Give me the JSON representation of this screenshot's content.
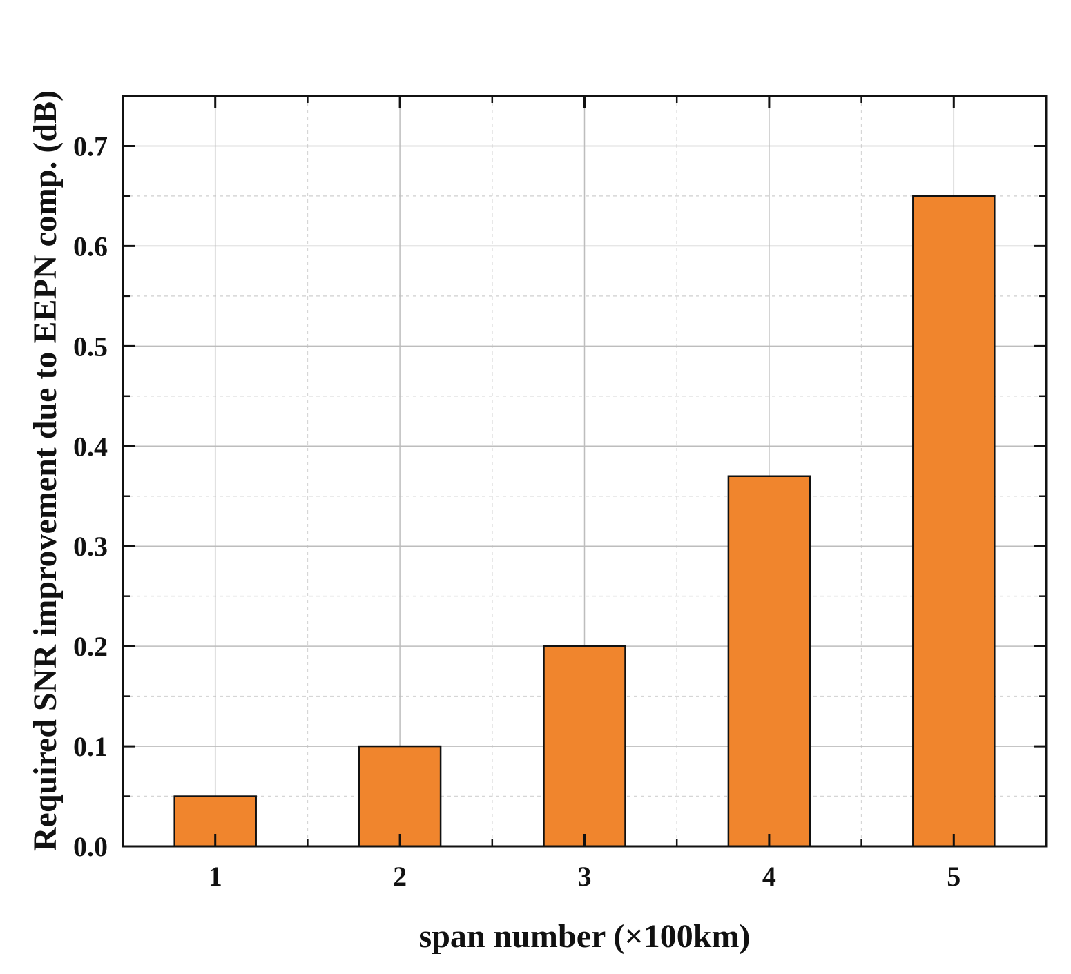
{
  "chart_data": {
    "type": "bar",
    "title": "",
    "xlabel": "span number (×100km)",
    "ylabel": "Required SNR improvement due to EEPN comp. (dB)",
    "categories": [
      "1",
      "2",
      "3",
      "4",
      "5"
    ],
    "values": [
      0.05,
      0.1,
      0.2,
      0.37,
      0.65
    ],
    "xlim": [
      0.5,
      5.5
    ],
    "ylim": [
      0,
      0.75
    ],
    "y_ticks": [
      0.0,
      0.1,
      0.2,
      0.3,
      0.4,
      0.5,
      0.6,
      0.7
    ],
    "y_tick_labels": [
      "0.0",
      "0.1",
      "0.2",
      "0.3",
      "0.4",
      "0.5",
      "0.6",
      "0.7"
    ],
    "y_minor_ticks": [
      0.05,
      0.15,
      0.25,
      0.35,
      0.45,
      0.55,
      0.65,
      0.75
    ],
    "x_minor_ticks": [
      1.5,
      2.5,
      3.5,
      4.5
    ],
    "grid": true,
    "legend": "none",
    "colors": {
      "bar_fill": "#F0852D",
      "bar_edge": "#111111",
      "major_grid": "#bdbdbd",
      "minor_grid": "#d6d6d6",
      "axis": "#111111"
    }
  }
}
